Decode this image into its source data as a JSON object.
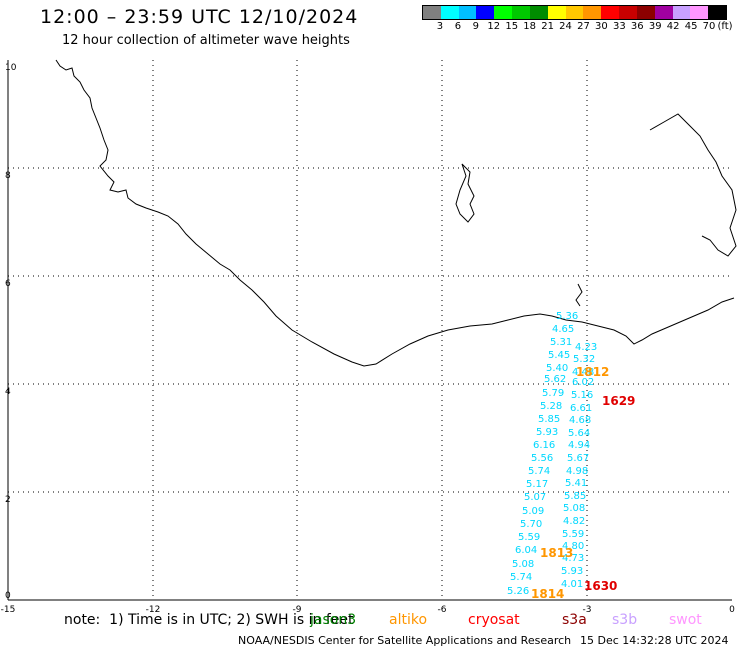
{
  "header": {
    "title": "12:00 – 23:59 UTC 12/10/2024",
    "subtitle": "12 hour collection of altimeter wave heights"
  },
  "legend": {
    "unit": "(ft)",
    "colors": [
      "#808080",
      "#00ffff",
      "#00bfff",
      "#0000ff",
      "#00ff00",
      "#00c800",
      "#008c00",
      "#ffff00",
      "#ffc800",
      "#ff9600",
      "#ff0000",
      "#c80000",
      "#8c0000",
      "#a000a0",
      "#c8a0ff",
      "#ff96ff",
      "#000000"
    ],
    "labels": [
      "3",
      "6",
      "9",
      "12",
      "15",
      "18",
      "21",
      "24",
      "27",
      "30",
      "33",
      "36",
      "39",
      "42",
      "45",
      "70"
    ]
  },
  "axes": {
    "x_ticks": [
      "-15",
      "-12",
      "-9",
      "-6",
      "-3",
      "0"
    ],
    "y_ticks": [
      "0",
      "2",
      "4",
      "6",
      "8",
      "10"
    ]
  },
  "tracks": {
    "left": [
      "5.26",
      "5.74",
      "5.08",
      "6.04",
      "5.59",
      "5.70",
      "5.09",
      "5.07",
      "5.17",
      "5.74",
      "5.56",
      "6.16",
      "5.93",
      "5.85",
      "5.28",
      "5.79",
      "5.62",
      "5.40",
      "5.45",
      "5.31",
      "4.65",
      "5.36"
    ],
    "right": [
      "4.01",
      "5.93",
      "4.73",
      "4.80",
      "5.59",
      "4.82",
      "5.08",
      "5.85",
      "5.41",
      "4.98",
      "5.67",
      "4.94",
      "5.64",
      "4.68",
      "6.61",
      "5.16",
      "6.02",
      "4.48",
      "5.32",
      "4.23"
    ]
  },
  "time_labels": {
    "t1": "1812",
    "t2": "1629",
    "t3": "1813",
    "t4": "1814",
    "t5": "1630"
  },
  "footer": {
    "note": "note:  1) Time is in UTC; 2) SWH is in feet",
    "satellites": [
      "jason3",
      "altiko",
      "cryosat",
      "s3a",
      "s3b",
      "swot"
    ],
    "sat_colors": [
      "#008000",
      "#ff9600",
      "#ff0000",
      "#8c0000",
      "#c8a0ff",
      "#ff96ff"
    ],
    "credit": "NOAA/NESDIS Center for Satellite Applications and Research",
    "timestamp": "15 Dec 14:32:28 UTC 2024"
  }
}
